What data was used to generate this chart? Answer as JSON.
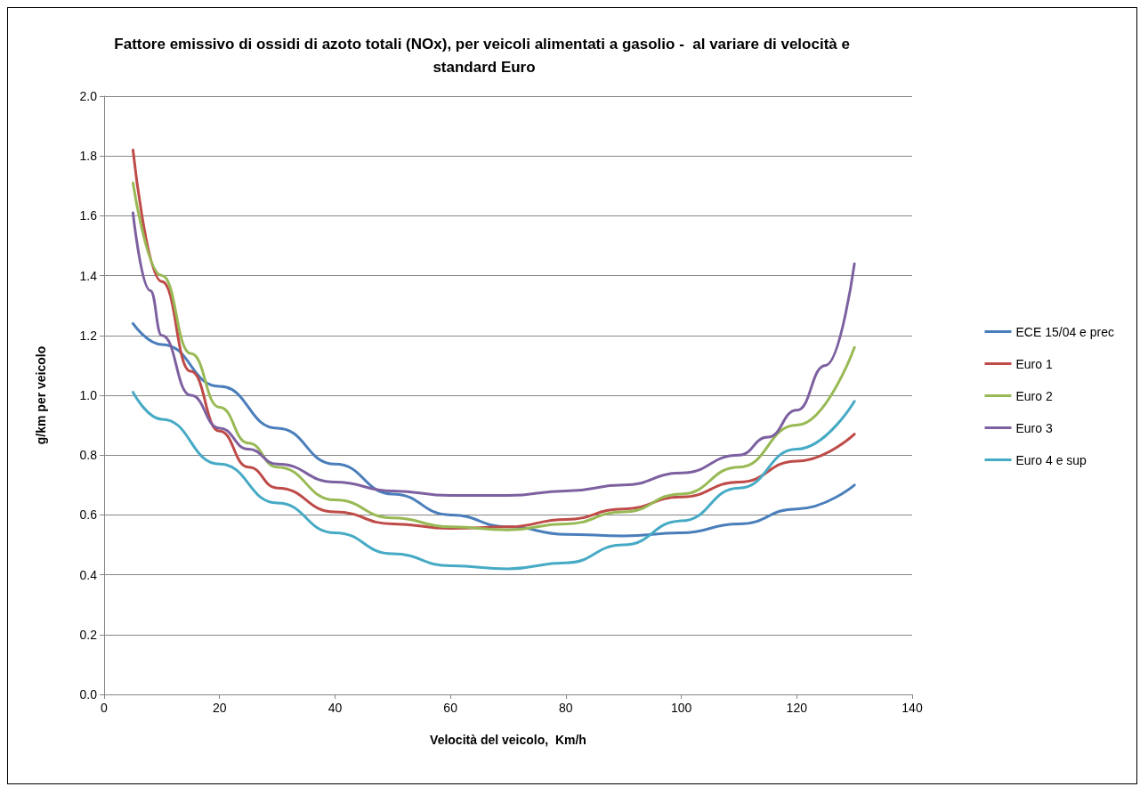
{
  "chart_data": {
    "type": "line",
    "title": "Fattore emissivo di ossidi di azoto totali (NOx), per veicoli alimentati a gasolio -  al variare di velocità e standard Euro",
    "xlabel": "Velocità del veicolo,  Km/h",
    "ylabel": "g/km per veicolo",
    "xlim": [
      0,
      140
    ],
    "xticks": [
      0,
      20,
      40,
      60,
      80,
      100,
      120,
      140
    ],
    "ylim": [
      0,
      2
    ],
    "yticks": [
      {
        "value": 0,
        "label": "0.0"
      },
      {
        "value": 0.2,
        "label": "0.2"
      },
      {
        "value": 0.4,
        "label": "0.4"
      },
      {
        "value": 0.6,
        "label": "0.6"
      },
      {
        "value": 0.8,
        "label": "0.8"
      },
      {
        "value": 1,
        "label": "1.0"
      },
      {
        "value": 1.2,
        "label": "1.2"
      },
      {
        "value": 1.4,
        "label": "1.4"
      },
      {
        "value": 1.6,
        "label": "1.6"
      },
      {
        "value": 1.8,
        "label": "1.8"
      },
      {
        "value": 2,
        "label": "2.0"
      }
    ],
    "grid": "y",
    "legend": "right",
    "marker": "none",
    "line_style": "solid",
    "series": [
      {
        "name": "ECE 15/04 e prec",
        "color": "#4a7ebb",
        "x": [
          5,
          10,
          20,
          30,
          40,
          50,
          60,
          70,
          80,
          90,
          100,
          110,
          120,
          130
        ],
        "values": [
          1.24,
          1.17,
          1.03,
          0.89,
          0.77,
          0.67,
          0.6,
          0.56,
          0.535,
          0.53,
          0.54,
          0.57,
          0.62,
          0.7
        ]
      },
      {
        "name": "Euro 1",
        "color": "#be4b48",
        "x": [
          5,
          10,
          15,
          20,
          25,
          30,
          40,
          50,
          60,
          70,
          80,
          90,
          100,
          110,
          120,
          130
        ],
        "values": [
          1.82,
          1.38,
          1.08,
          0.88,
          0.76,
          0.69,
          0.61,
          0.57,
          0.555,
          0.56,
          0.585,
          0.62,
          0.66,
          0.71,
          0.78,
          0.87
        ]
      },
      {
        "name": "Euro 2",
        "color": "#98b954",
        "x": [
          5,
          10,
          15,
          20,
          25,
          30,
          40,
          50,
          60,
          70,
          80,
          90,
          100,
          110,
          120,
          130
        ],
        "values": [
          1.71,
          1.4,
          1.14,
          0.96,
          0.84,
          0.76,
          0.65,
          0.59,
          0.56,
          0.55,
          0.57,
          0.61,
          0.67,
          0.76,
          0.9,
          1.16
        ]
      },
      {
        "name": "Euro 3",
        "color": "#7d60a0",
        "x": [
          5,
          8,
          10,
          15,
          20,
          25,
          30,
          40,
          50,
          60,
          70,
          80,
          90,
          100,
          110,
          115,
          120,
          125,
          130
        ],
        "values": [
          1.61,
          1.35,
          1.2,
          1.0,
          0.89,
          0.82,
          0.77,
          0.71,
          0.68,
          0.665,
          0.665,
          0.68,
          0.7,
          0.74,
          0.8,
          0.86,
          0.95,
          1.1,
          1.44
        ]
      },
      {
        "name": "Euro 4 e sup",
        "color": "#46aac5",
        "x": [
          5,
          10,
          20,
          30,
          40,
          50,
          60,
          70,
          80,
          90,
          100,
          110,
          120,
          130
        ],
        "values": [
          1.01,
          0.92,
          0.77,
          0.64,
          0.54,
          0.47,
          0.43,
          0.42,
          0.44,
          0.5,
          0.58,
          0.69,
          0.82,
          0.98
        ]
      }
    ]
  }
}
